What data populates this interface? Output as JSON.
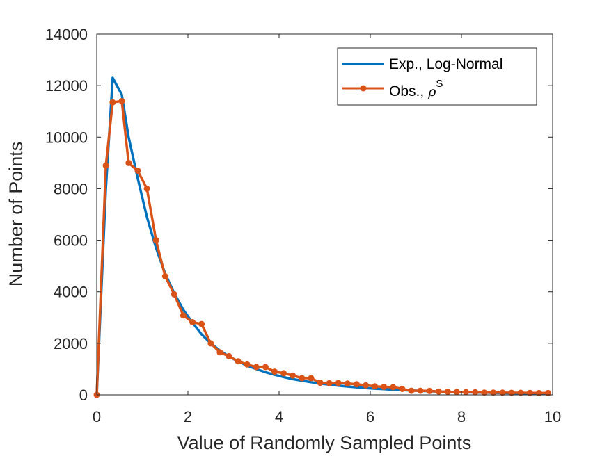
{
  "chart_data": {
    "type": "line",
    "xlabel": "Value of Randomly Sampled Points",
    "ylabel": "Number of Points",
    "xlim": [
      0,
      10
    ],
    "ylim": [
      0,
      14000
    ],
    "xticks": [
      "0",
      "2",
      "4",
      "6",
      "8",
      "10"
    ],
    "yticks": [
      "0",
      "2000",
      "4000",
      "6000",
      "8000",
      "10000",
      "12000",
      "14000"
    ],
    "grid": false,
    "legend_position": "top-right",
    "series": [
      {
        "name": "Exp., Log-Normal",
        "color": "#0072BD",
        "marker": "none",
        "x": [
          0.0,
          0.2,
          0.35,
          0.55,
          0.7,
          0.9,
          1.1,
          1.3,
          1.5,
          1.7,
          1.9,
          2.1,
          2.3,
          2.5,
          2.7,
          2.9,
          3.1,
          3.3,
          3.5,
          3.7,
          3.9,
          4.1,
          4.3,
          4.5,
          4.7,
          4.9,
          5.1,
          5.3,
          5.5,
          5.7,
          5.9,
          6.1,
          6.3,
          6.5,
          6.7,
          6.9,
          7.1,
          7.3,
          7.5,
          7.7,
          7.9,
          8.1,
          8.3,
          8.5,
          8.7,
          8.9,
          9.1,
          9.3,
          9.5,
          9.7,
          9.9
        ],
        "y": [
          0,
          8000,
          12300,
          11650,
          10000,
          8400,
          6900,
          5700,
          4700,
          3950,
          3300,
          2800,
          2350,
          2000,
          1720,
          1490,
          1300,
          1130,
          1000,
          880,
          780,
          690,
          610,
          550,
          490,
          440,
          400,
          360,
          325,
          295,
          265,
          240,
          220,
          200,
          185,
          170,
          155,
          140,
          130,
          120,
          110,
          100,
          92,
          85,
          78,
          72,
          66,
          60,
          55,
          50,
          46
        ]
      },
      {
        "name": "Obs., ρS",
        "color": "#D95319",
        "marker": "circle",
        "x": [
          0.0,
          0.2,
          0.35,
          0.55,
          0.7,
          0.9,
          1.1,
          1.3,
          1.5,
          1.7,
          1.9,
          2.1,
          2.3,
          2.5,
          2.7,
          2.9,
          3.1,
          3.3,
          3.5,
          3.7,
          3.9,
          4.1,
          4.3,
          4.5,
          4.7,
          4.9,
          5.1,
          5.3,
          5.5,
          5.7,
          5.9,
          6.1,
          6.3,
          6.5,
          6.7,
          6.9,
          7.1,
          7.3,
          7.5,
          7.7,
          7.9,
          8.1,
          8.3,
          8.5,
          8.7,
          8.9,
          9.1,
          9.3,
          9.5,
          9.7,
          9.9
        ],
        "y": [
          0,
          8900,
          11350,
          11400,
          9000,
          8700,
          8000,
          6000,
          4600,
          3900,
          3080,
          2820,
          2750,
          2000,
          1650,
          1500,
          1300,
          1180,
          1080,
          1080,
          900,
          840,
          750,
          650,
          650,
          470,
          450,
          460,
          440,
          410,
          370,
          330,
          310,
          300,
          230,
          160,
          160,
          150,
          130,
          120,
          110,
          105,
          100,
          90,
          90,
          85,
          80,
          80,
          75,
          70,
          70
        ]
      }
    ]
  }
}
